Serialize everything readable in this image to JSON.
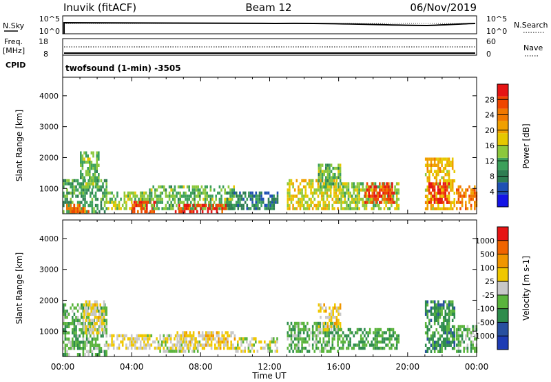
{
  "header": {
    "station": "Inuvik (fitACF)",
    "beam": "Beam 12",
    "date": "06/Nov/2019"
  },
  "top_panels": {
    "nsky": {
      "label": "N.Sky",
      "ticks": [
        "10^5",
        "10^0"
      ]
    },
    "nsearch": {
      "label": "N.Search",
      "ticks": [
        "10^5",
        "10^0"
      ]
    },
    "freq": {
      "label": "Freq.",
      "unit": "[MHz]",
      "ticks": [
        "18",
        "8"
      ]
    },
    "nave": {
      "label": "Nave",
      "ticks": [
        "60",
        "0"
      ]
    },
    "cpid": {
      "label": "CPID",
      "value": "twofsound (1-min) -3505"
    }
  },
  "chart_data": [
    {
      "type": "heatmap",
      "name": "power",
      "xlabel": "",
      "ylabel": "Slant Range [km]",
      "xlim": [
        0,
        24
      ],
      "ylim": [
        180,
        4600
      ],
      "yticks": [
        1000,
        2000,
        3000,
        4000
      ],
      "colorbar": {
        "label": "Power [dB]",
        "ticks": [
          "28",
          "24",
          "20",
          "16",
          "12",
          "8",
          "4"
        ],
        "colors": [
          "#1414e6",
          "#1e50b4",
          "#2e7d52",
          "#3ca05a",
          "#8cc83c",
          "#e6c800",
          "#f0a000",
          "#f07800",
          "#f04600",
          "#e61414"
        ],
        "range": [
          0,
          30
        ]
      },
      "regions": [
        {
          "t0": 0.0,
          "t1": 2.6,
          "r0": 180,
          "r1": 1300,
          "v": 10
        },
        {
          "t0": 0.2,
          "t1": 1.6,
          "r0": 180,
          "r1": 500,
          "v": 24
        },
        {
          "t0": 1.0,
          "t1": 2.1,
          "r0": 1000,
          "r1": 2200,
          "v": 12
        },
        {
          "t0": 2.6,
          "t1": 5.0,
          "r0": 300,
          "r1": 900,
          "v": 14
        },
        {
          "t0": 4.0,
          "t1": 5.5,
          "r0": 180,
          "r1": 600,
          "v": 26
        },
        {
          "t0": 5.0,
          "t1": 10.0,
          "r0": 300,
          "r1": 1100,
          "v": 12
        },
        {
          "t0": 6.5,
          "t1": 9.5,
          "r0": 180,
          "r1": 500,
          "v": 27
        },
        {
          "t0": 9.5,
          "t1": 12.5,
          "r0": 300,
          "r1": 900,
          "v": 8
        },
        {
          "t0": 13.0,
          "t1": 16.0,
          "r0": 300,
          "r1": 1300,
          "v": 16
        },
        {
          "t0": 14.8,
          "t1": 16.2,
          "r0": 1000,
          "r1": 1800,
          "v": 12
        },
        {
          "t0": 16.0,
          "t1": 19.5,
          "r0": 300,
          "r1": 1200,
          "v": 14
        },
        {
          "t0": 17.5,
          "t1": 19.3,
          "r0": 500,
          "r1": 1200,
          "v": 26
        },
        {
          "t0": 21.0,
          "t1": 22.8,
          "r0": 300,
          "r1": 2000,
          "v": 18
        },
        {
          "t0": 21.2,
          "t1": 22.4,
          "r0": 500,
          "r1": 1200,
          "v": 28
        },
        {
          "t0": 22.8,
          "t1": 24.0,
          "r0": 300,
          "r1": 1100,
          "v": 22
        }
      ]
    },
    {
      "type": "heatmap",
      "name": "velocity",
      "xlabel": "Time UT",
      "ylabel": "Slant Range [km]",
      "xlim": [
        0,
        24
      ],
      "ylim": [
        180,
        4600
      ],
      "xticks": [
        "00:00",
        "04:00",
        "08:00",
        "12:00",
        "16:00",
        "20:00",
        "00:00"
      ],
      "yticks": [
        1000,
        2000,
        3000,
        4000
      ],
      "colorbar": {
        "label": "Velocity [m s-1]",
        "ticks": [
          "1000",
          "500",
          "100",
          "25",
          "-25",
          "-100",
          "-500",
          "-1000"
        ],
        "colors": [
          "#1e3cb4",
          "#2850a0",
          "#2e8c4c",
          "#5ab43c",
          "#c8c8c8",
          "#f0c800",
          "#f09600",
          "#f06400",
          "#e61414"
        ],
        "range": [
          -1200,
          1200
        ]
      },
      "regions": [
        {
          "t0": 0.0,
          "t1": 2.6,
          "r0": 180,
          "r1": 1900,
          "v": -300
        },
        {
          "t0": 1.2,
          "t1": 2.4,
          "r0": 900,
          "r1": 2000,
          "v": 150
        },
        {
          "t0": 2.6,
          "t1": 5.5,
          "r0": 400,
          "r1": 900,
          "v": 120
        },
        {
          "t0": 5.5,
          "t1": 8.0,
          "r0": 300,
          "r1": 900,
          "v": 0
        },
        {
          "t0": 6.5,
          "t1": 10.0,
          "r0": 400,
          "r1": 1000,
          "v": 200
        },
        {
          "t0": 10.0,
          "t1": 12.5,
          "r0": 300,
          "r1": 800,
          "v": 0
        },
        {
          "t0": 13.0,
          "t1": 16.0,
          "r0": 300,
          "r1": 1300,
          "v": -300
        },
        {
          "t0": 14.8,
          "t1": 16.2,
          "r0": 1000,
          "r1": 1900,
          "v": 250
        },
        {
          "t0": 16.0,
          "t1": 19.5,
          "r0": 400,
          "r1": 1100,
          "v": -400
        },
        {
          "t0": 21.0,
          "t1": 22.8,
          "r0": 300,
          "r1": 2000,
          "v": -500
        },
        {
          "t0": 22.8,
          "t1": 24.0,
          "r0": 300,
          "r1": 1200,
          "v": -300
        }
      ]
    }
  ]
}
